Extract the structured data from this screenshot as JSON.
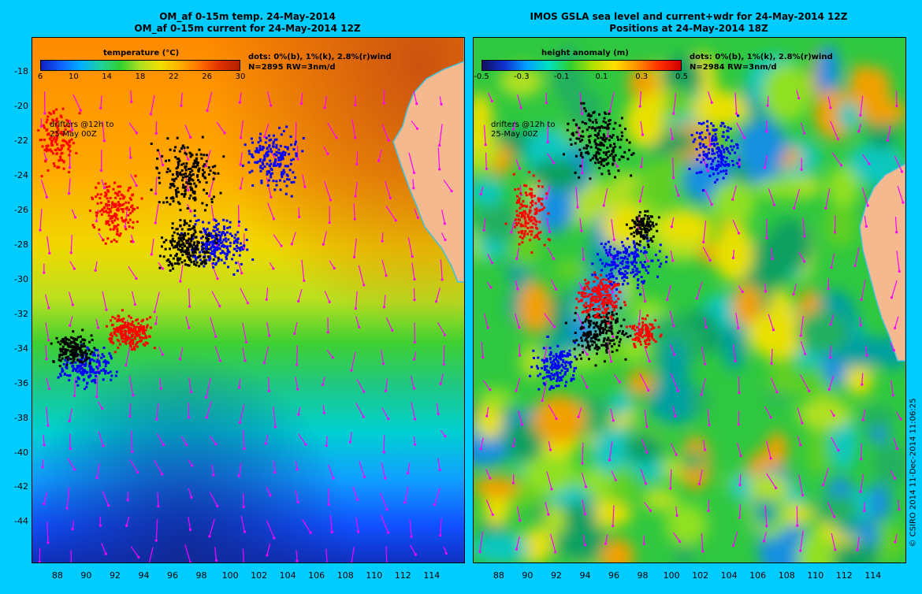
{
  "left_panel": {
    "title_line1": "OM_af 0-15m temp. 24-May-2014",
    "title_line2": "OM_af 0-15m current for 24-May-2014 12Z",
    "colorbar_title": "temperature (°C)",
    "colorbar_ticks": [
      "6",
      "10",
      "14",
      "18",
      "22",
      "26",
      "30"
    ],
    "dots_line1": "dots: 0%(b), 1%(k), 2.8%(r)wind",
    "dots_line2": "N=2895 RW=3nm/d",
    "drifters_line1": "drifters @12h to",
    "drifters_line2": "25-May 00Z"
  },
  "right_panel": {
    "title_line1": "IMOS GSLA sea level and current+wdr for 24-May-2014 12Z",
    "title_line2": "Positions at 24-May-2014 18Z",
    "colorbar_title": "height anomaly (m)",
    "colorbar_ticks": [
      "-0.5",
      "-0.3",
      "-0.1",
      "0.1",
      "0.3",
      "0.5"
    ],
    "dots_line1": "dots: 0%(b), 1%(k), 2.8%(r)wind",
    "dots_line2": "N=2984 RW=3nm/d",
    "drifters_line1": "drifters @12h to",
    "drifters_line2": "25-May 00Z"
  },
  "axes": {
    "x_ticks": [
      "88",
      "90",
      "92",
      "94",
      "96",
      "98",
      "100",
      "102",
      "104",
      "106",
      "108",
      "110",
      "112",
      "114"
    ],
    "y_ticks": [
      "-18",
      "-20",
      "-22",
      "-24",
      "-26",
      "-28",
      "-30",
      "-32",
      "-34",
      "-36",
      "-38",
      "-40",
      "-42",
      "-44"
    ],
    "lon_range": [
      86.2,
      116.2
    ],
    "lat_range": [
      -46.3,
      -16
    ]
  },
  "credit": "© CSIRO 2014   11-Dec-2014 11:06:25",
  "colors": {
    "background": "#00ccff",
    "land": "#f5b990",
    "coast": "#40c0e0",
    "arrow": "#ff00ff",
    "drifter_red": "#ff0000",
    "drifter_black": "#000000",
    "drifter_blue": "#0000ff"
  }
}
